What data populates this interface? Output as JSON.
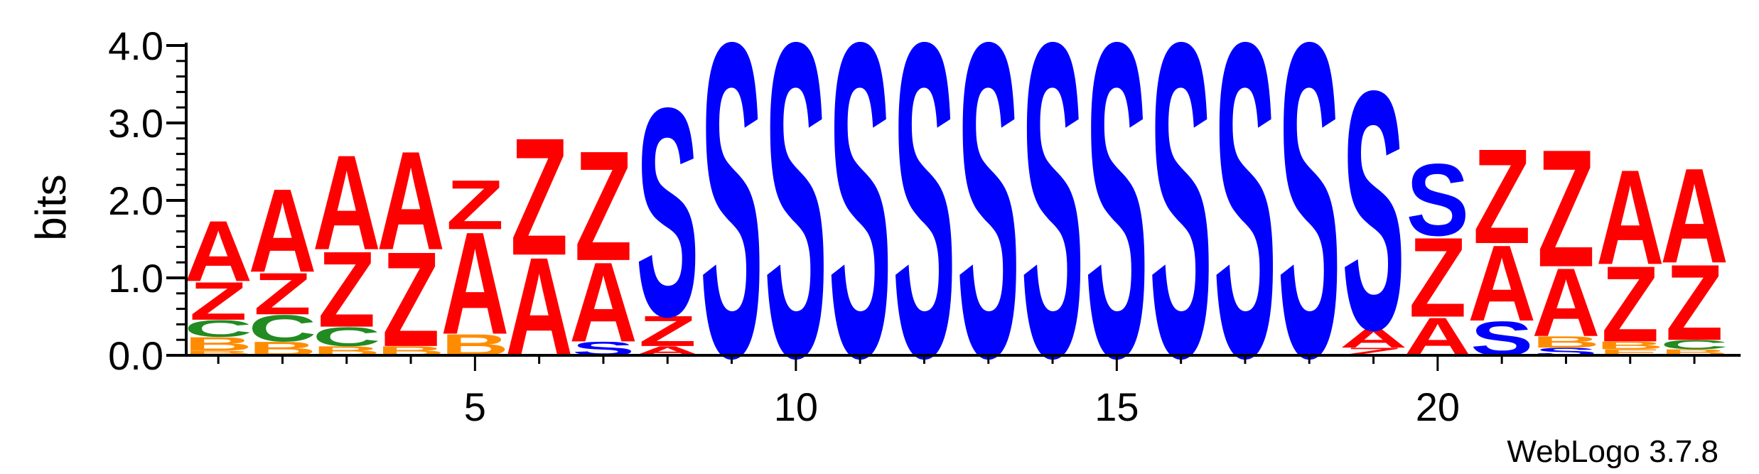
{
  "chart_data": {
    "type": "sequence-logo",
    "ylabel": "bits",
    "ylim": [
      0,
      4.0
    ],
    "y_ticks": [
      "0.0",
      "1.0",
      "2.0",
      "3.0",
      "4.0"
    ],
    "x_ticks": [
      "5",
      "10",
      "15",
      "20"
    ],
    "x_tick_positions": [
      5,
      10,
      15,
      20
    ],
    "x_range": [
      1,
      24
    ],
    "colors": {
      "A": "#ff0000",
      "Z": "#ff0000",
      "S": "#0000ff",
      "C": "#228b22",
      "B": "#ff8c00",
      "E": "#ff8c00"
    },
    "positions": [
      {
        "pos": 1,
        "stack": [
          [
            "B",
            0.06
          ],
          [
            "B",
            0.18
          ],
          [
            "C",
            0.22
          ],
          [
            "Z",
            0.5
          ],
          [
            "A",
            0.8
          ]
        ]
      },
      {
        "pos": 2,
        "stack": [
          [
            "B",
            0.18
          ],
          [
            "C",
            0.35
          ],
          [
            "Z",
            0.55
          ],
          [
            "A",
            1.1
          ]
        ]
      },
      {
        "pos": 3,
        "stack": [
          [
            "B",
            0.12
          ],
          [
            "C",
            0.25
          ],
          [
            "Z",
            1.0
          ],
          [
            "A",
            1.25
          ]
        ]
      },
      {
        "pos": 4,
        "stack": [
          [
            "B",
            0.12
          ],
          [
            "Z",
            1.25
          ],
          [
            "A",
            1.3
          ]
        ]
      },
      {
        "pos": 5,
        "stack": [
          [
            "B",
            0.28
          ],
          [
            "A",
            1.35
          ],
          [
            "Z",
            0.0
          ],
          [
            "Z",
            0.65
          ]
        ]
      },
      {
        "pos": 6,
        "stack": [
          [
            "A",
            1.3
          ],
          [
            "Z",
            1.55
          ]
        ]
      },
      {
        "pos": 7,
        "stack": [
          [
            "S",
            0.18
          ],
          [
            "A",
            1.05
          ],
          [
            "Z",
            1.45
          ]
        ]
      },
      {
        "pos": 8,
        "stack": [
          [
            "A",
            0.12
          ],
          [
            "Z",
            0.4
          ],
          [
            "S",
            2.75
          ]
        ]
      },
      {
        "pos": 9,
        "stack": [
          [
            "S",
            4.15
          ]
        ]
      },
      {
        "pos": 10,
        "stack": [
          [
            "S",
            4.15
          ]
        ]
      },
      {
        "pos": 11,
        "stack": [
          [
            "S",
            4.15
          ]
        ]
      },
      {
        "pos": 12,
        "stack": [
          [
            "S",
            4.15
          ]
        ]
      },
      {
        "pos": 13,
        "stack": [
          [
            "S",
            4.15
          ]
        ]
      },
      {
        "pos": 14,
        "stack": [
          [
            "S",
            4.15
          ]
        ]
      },
      {
        "pos": 15,
        "stack": [
          [
            "S",
            4.15
          ]
        ]
      },
      {
        "pos": 16,
        "stack": [
          [
            "S",
            4.15
          ]
        ]
      },
      {
        "pos": 17,
        "stack": [
          [
            "S",
            4.15
          ]
        ]
      },
      {
        "pos": 18,
        "stack": [
          [
            "S",
            4.15
          ]
        ]
      },
      {
        "pos": 19,
        "stack": [
          [
            "Z",
            0.1
          ],
          [
            "A",
            0.25
          ],
          [
            "S",
            3.15
          ]
        ]
      },
      {
        "pos": 20,
        "stack": [
          [
            "A",
            0.5
          ],
          [
            "Z",
            1.05
          ],
          [
            "S",
            0.95
          ]
        ]
      },
      {
        "pos": 21,
        "stack": [
          [
            "S",
            0.45
          ],
          [
            "A",
            1.0
          ],
          [
            "Z",
            1.25
          ]
        ]
      },
      {
        "pos": 22,
        "stack": [
          [
            "S",
            0.1
          ],
          [
            "B",
            0.15
          ],
          [
            "A",
            0.9
          ],
          [
            "Z",
            1.55
          ]
        ]
      },
      {
        "pos": 23,
        "stack": [
          [
            "E",
            0.08
          ],
          [
            "B",
            0.1
          ],
          [
            "Z",
            1.0
          ],
          [
            "A",
            1.25
          ]
        ]
      },
      {
        "pos": 24,
        "stack": [
          [
            "B",
            0.08
          ],
          [
            "C",
            0.12
          ],
          [
            "Z",
            1.0
          ],
          [
            "A",
            1.25
          ]
        ]
      }
    ]
  },
  "credit": "WebLogo 3.7.8"
}
